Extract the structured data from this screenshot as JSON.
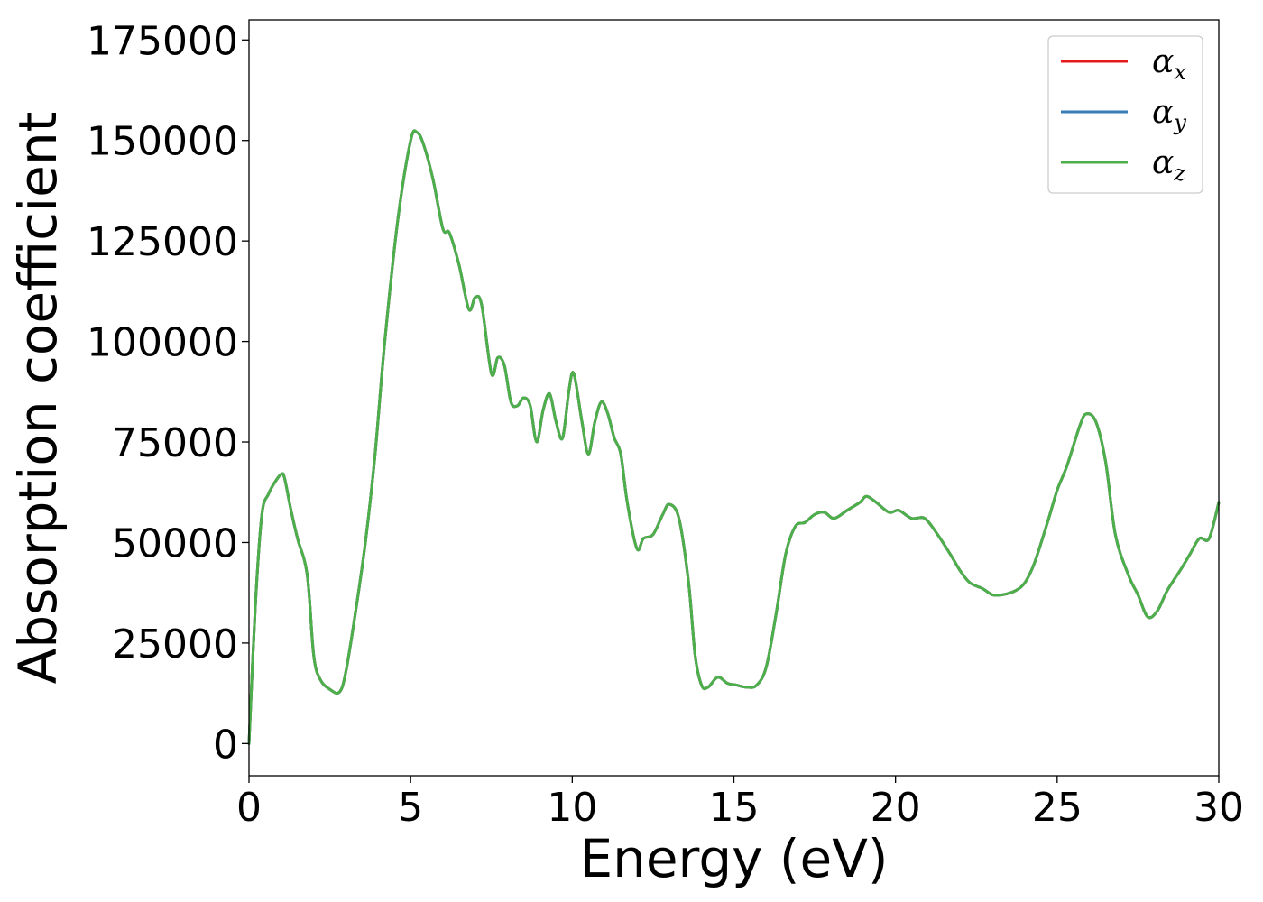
{
  "chart_data": {
    "type": "line",
    "xlabel": "Energy (eV)",
    "ylabel": "Absorption coefficient",
    "xlim": [
      0,
      30
    ],
    "ylim": [
      -8000,
      180000
    ],
    "xticks": [
      0,
      5,
      10,
      15,
      20,
      25,
      30
    ],
    "xtick_labels": [
      "0",
      "5",
      "10",
      "15",
      "20",
      "25",
      "30"
    ],
    "yticks": [
      0,
      25000,
      50000,
      75000,
      100000,
      125000,
      150000,
      175000
    ],
    "ytick_labels": [
      "0",
      "25000",
      "50000",
      "75000",
      "100000",
      "125000",
      "150000",
      "175000"
    ],
    "grid": false,
    "legend_position": "top-right",
    "series": [
      {
        "name": "αx",
        "symbol": "α",
        "subscript": "x",
        "color": "#e41a1c",
        "x": [
          0,
          0.2,
          0.4,
          0.6,
          0.8,
          1.0,
          1.1,
          1.3,
          1.5,
          1.8,
          2.0,
          2.2,
          2.5,
          2.8,
          3.0,
          3.3,
          3.6,
          3.9,
          4.2,
          4.6,
          5.0,
          5.2,
          5.4,
          5.7,
          6.0,
          6.2,
          6.5,
          6.8,
          7.0,
          7.2,
          7.5,
          7.7,
          7.9,
          8.1,
          8.3,
          8.5,
          8.7,
          8.9,
          9.1,
          9.3,
          9.5,
          9.7,
          9.9,
          10.05,
          10.3,
          10.5,
          10.7,
          10.9,
          11.1,
          11.3,
          11.5,
          11.7,
          12.0,
          12.2,
          12.5,
          12.8,
          13.0,
          13.3,
          13.6,
          13.8,
          14.0,
          14.2,
          14.5,
          14.8,
          15.1,
          15.4,
          15.7,
          16.0,
          16.3,
          16.6,
          16.9,
          17.2,
          17.5,
          17.8,
          18.1,
          18.5,
          18.9,
          19.1,
          19.4,
          19.8,
          20.1,
          20.5,
          20.9,
          21.3,
          21.7,
          22.0,
          22.3,
          22.7,
          23.0,
          23.3,
          23.7,
          24.0,
          24.3,
          24.7,
          25.0,
          25.3,
          25.7,
          25.9,
          26.2,
          26.5,
          26.8,
          27.2,
          27.5,
          27.8,
          28.1,
          28.4,
          28.8,
          29.1,
          29.4,
          29.7,
          30.0
        ],
        "y": [
          0,
          35000,
          57000,
          62000,
          65000,
          67000,
          66000,
          58000,
          51000,
          42000,
          22000,
          16000,
          13500,
          12800,
          18000,
          33000,
          50000,
          72000,
          100000,
          130000,
          150000,
          152000,
          149000,
          140000,
          128000,
          127000,
          119000,
          108000,
          111000,
          109000,
          92000,
          96000,
          94000,
          85000,
          84000,
          86000,
          84000,
          75000,
          83000,
          87000,
          80000,
          76000,
          88000,
          92000,
          80000,
          72000,
          80000,
          85000,
          82000,
          76000,
          72000,
          60000,
          48500,
          51000,
          52000,
          57000,
          59500,
          56000,
          40000,
          22000,
          14500,
          14000,
          16500,
          15000,
          14500,
          14000,
          14500,
          19000,
          32000,
          47000,
          54000,
          55000,
          57000,
          57500,
          56000,
          58000,
          60000,
          61500,
          60000,
          57500,
          58000,
          56000,
          56000,
          52000,
          47000,
          43000,
          40000,
          38500,
          37000,
          37000,
          38000,
          40000,
          45000,
          55000,
          63000,
          69000,
          79000,
          82000,
          80000,
          70000,
          52000,
          42000,
          37000,
          31500,
          33000,
          38000,
          43000,
          47000,
          51000,
          51000,
          60000
        ]
      },
      {
        "name": "αy",
        "symbol": "α",
        "subscript": "y",
        "color": "#377eb8",
        "x": [
          0,
          0.2,
          0.4,
          0.6,
          0.8,
          1.0,
          1.1,
          1.3,
          1.5,
          1.8,
          2.0,
          2.2,
          2.5,
          2.8,
          3.0,
          3.3,
          3.6,
          3.9,
          4.2,
          4.6,
          5.0,
          5.2,
          5.4,
          5.7,
          6.0,
          6.2,
          6.5,
          6.8,
          7.0,
          7.2,
          7.5,
          7.7,
          7.9,
          8.1,
          8.3,
          8.5,
          8.7,
          8.9,
          9.1,
          9.3,
          9.5,
          9.7,
          9.9,
          10.05,
          10.3,
          10.5,
          10.7,
          10.9,
          11.1,
          11.3,
          11.5,
          11.7,
          12.0,
          12.2,
          12.5,
          12.8,
          13.0,
          13.3,
          13.6,
          13.8,
          14.0,
          14.2,
          14.5,
          14.8,
          15.1,
          15.4,
          15.7,
          16.0,
          16.3,
          16.6,
          16.9,
          17.2,
          17.5,
          17.8,
          18.1,
          18.5,
          18.9,
          19.1,
          19.4,
          19.8,
          20.1,
          20.5,
          20.9,
          21.3,
          21.7,
          22.0,
          22.3,
          22.7,
          23.0,
          23.3,
          23.7,
          24.0,
          24.3,
          24.7,
          25.0,
          25.3,
          25.7,
          25.9,
          26.2,
          26.5,
          26.8,
          27.2,
          27.5,
          27.8,
          28.1,
          28.4,
          28.8,
          29.1,
          29.4,
          29.7,
          30.0
        ],
        "y": [
          0,
          35000,
          57000,
          62000,
          65000,
          67000,
          66000,
          58000,
          51000,
          42000,
          22000,
          16000,
          13500,
          12800,
          18000,
          33000,
          50000,
          72000,
          100000,
          130000,
          150000,
          152000,
          149000,
          140000,
          128000,
          127000,
          119000,
          108000,
          111000,
          109000,
          92000,
          96000,
          94000,
          85000,
          84000,
          86000,
          84000,
          75000,
          83000,
          87000,
          80000,
          76000,
          88000,
          92000,
          80000,
          72000,
          80000,
          85000,
          82000,
          76000,
          72000,
          60000,
          48500,
          51000,
          52000,
          57000,
          59500,
          56000,
          40000,
          22000,
          14500,
          14000,
          16500,
          15000,
          14500,
          14000,
          14500,
          19000,
          32000,
          47000,
          54000,
          55000,
          57000,
          57500,
          56000,
          58000,
          60000,
          61500,
          60000,
          57500,
          58000,
          56000,
          56000,
          52000,
          47000,
          43000,
          40000,
          38500,
          37000,
          37000,
          38000,
          40000,
          45000,
          55000,
          63000,
          69000,
          79000,
          82000,
          80000,
          70000,
          52000,
          42000,
          37000,
          31500,
          33000,
          38000,
          43000,
          47000,
          51000,
          51000,
          60000
        ]
      },
      {
        "name": "αz",
        "symbol": "α",
        "subscript": "z",
        "color": "#4daf4a",
        "x": [
          0,
          0.2,
          0.4,
          0.6,
          0.8,
          1.0,
          1.1,
          1.3,
          1.5,
          1.8,
          2.0,
          2.2,
          2.5,
          2.8,
          3.0,
          3.3,
          3.6,
          3.9,
          4.2,
          4.6,
          5.0,
          5.2,
          5.4,
          5.7,
          6.0,
          6.2,
          6.5,
          6.8,
          7.0,
          7.2,
          7.5,
          7.7,
          7.9,
          8.1,
          8.3,
          8.5,
          8.7,
          8.9,
          9.1,
          9.3,
          9.5,
          9.7,
          9.9,
          10.05,
          10.3,
          10.5,
          10.7,
          10.9,
          11.1,
          11.3,
          11.5,
          11.7,
          12.0,
          12.2,
          12.5,
          12.8,
          13.0,
          13.3,
          13.6,
          13.8,
          14.0,
          14.2,
          14.5,
          14.8,
          15.1,
          15.4,
          15.7,
          16.0,
          16.3,
          16.6,
          16.9,
          17.2,
          17.5,
          17.8,
          18.1,
          18.5,
          18.9,
          19.1,
          19.4,
          19.8,
          20.1,
          20.5,
          20.9,
          21.3,
          21.7,
          22.0,
          22.3,
          22.7,
          23.0,
          23.3,
          23.7,
          24.0,
          24.3,
          24.7,
          25.0,
          25.3,
          25.7,
          25.9,
          26.2,
          26.5,
          26.8,
          27.2,
          27.5,
          27.8,
          28.1,
          28.4,
          28.8,
          29.1,
          29.4,
          29.7,
          30.0
        ],
        "y": [
          0,
          35000,
          57000,
          62000,
          65000,
          67000,
          66000,
          58000,
          51000,
          42000,
          22000,
          16000,
          13500,
          12800,
          18000,
          33000,
          50000,
          72000,
          100000,
          130000,
          150000,
          152000,
          149000,
          140000,
          128000,
          127000,
          119000,
          108000,
          111000,
          109000,
          92000,
          96000,
          94000,
          85000,
          84000,
          86000,
          84000,
          75000,
          83000,
          87000,
          80000,
          76000,
          88000,
          92000,
          80000,
          72000,
          80000,
          85000,
          82000,
          76000,
          72000,
          60000,
          48500,
          51000,
          52000,
          57000,
          59500,
          56000,
          40000,
          22000,
          14500,
          14000,
          16500,
          15000,
          14500,
          14000,
          14500,
          19000,
          32000,
          47000,
          54000,
          55000,
          57000,
          57500,
          56000,
          58000,
          60000,
          61500,
          60000,
          57500,
          58000,
          56000,
          56000,
          52000,
          47000,
          43000,
          40000,
          38500,
          37000,
          37000,
          38000,
          40000,
          45000,
          55000,
          63000,
          69000,
          79000,
          82000,
          80000,
          70000,
          52000,
          42000,
          37000,
          31500,
          33000,
          38000,
          43000,
          47000,
          51000,
          51000,
          60000
        ]
      }
    ]
  }
}
